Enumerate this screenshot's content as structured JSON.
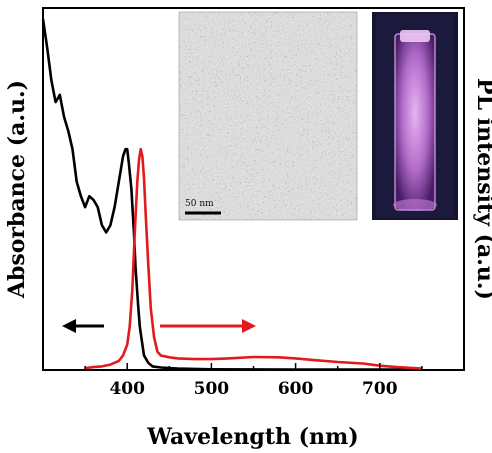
{
  "chart_data": {
    "type": "line",
    "xlabel": "Wavelength (nm)",
    "ylabel_left": "Absorbance (a.u.)",
    "ylabel_right": "PL intensity (a.u.)",
    "xlim": [
      300,
      800
    ],
    "ylim": [
      0,
      1
    ],
    "x_ticks": [
      400,
      500,
      600,
      700
    ],
    "x_tick_labels": [
      "400",
      "500",
      "600",
      "700"
    ],
    "grid": false,
    "series": [
      {
        "color": "#000000",
        "axis": "left",
        "x": [
          300,
          305,
          310,
          315,
          320,
          325,
          330,
          335,
          340,
          345,
          350,
          355,
          360,
          365,
          370,
          375,
          380,
          385,
          390,
          395,
          398,
          400,
          402,
          405,
          408,
          410,
          413,
          415,
          418,
          420,
          425,
          430,
          440,
          460,
          500,
          600,
          700,
          750
        ],
        "y": [
          0.97,
          0.89,
          0.8,
          0.74,
          0.76,
          0.7,
          0.66,
          0.61,
          0.52,
          0.48,
          0.45,
          0.48,
          0.47,
          0.45,
          0.4,
          0.38,
          0.4,
          0.45,
          0.52,
          0.59,
          0.61,
          0.61,
          0.57,
          0.5,
          0.38,
          0.28,
          0.18,
          0.12,
          0.07,
          0.04,
          0.02,
          0.01,
          0.007,
          0.004,
          0.002,
          0.001,
          0.001,
          0.001
        ]
      },
      {
        "color": "#e31a1c",
        "axis": "right",
        "x": [
          350,
          360,
          370,
          380,
          390,
          395,
          400,
          403,
          406,
          409,
          412,
          414,
          416,
          418,
          420,
          422,
          425,
          428,
          432,
          436,
          440,
          450,
          460,
          480,
          500,
          520,
          550,
          580,
          600,
          620,
          650,
          680,
          700,
          720,
          750
        ],
        "y": [
          0.005,
          0.008,
          0.01,
          0.015,
          0.025,
          0.04,
          0.07,
          0.12,
          0.22,
          0.38,
          0.52,
          0.58,
          0.61,
          0.59,
          0.53,
          0.43,
          0.29,
          0.17,
          0.09,
          0.05,
          0.04,
          0.035,
          0.032,
          0.03,
          0.03,
          0.032,
          0.036,
          0.035,
          0.032,
          0.028,
          0.022,
          0.018,
          0.012,
          0.008,
          0.004
        ]
      }
    ],
    "annotations": {
      "arrow_left_color": "#000000",
      "arrow_right_color": "#e31a1c",
      "inset_tem_scale_bar": "50 nm"
    }
  }
}
